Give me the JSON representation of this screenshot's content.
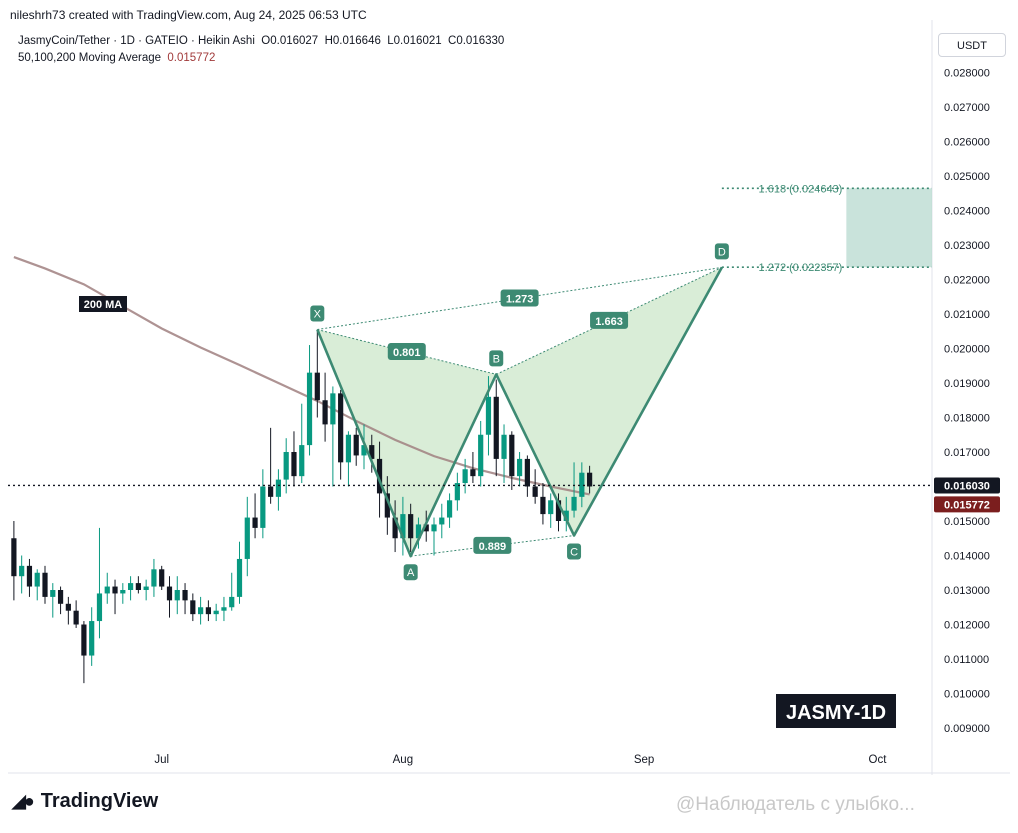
{
  "header": {
    "author_line": "nileshrh73 created with TradingView.com, Aug 24, 2025 06:53 UTC",
    "symbol_line": "JasmyCoin/Tether · 1D · GATEIO · Heikin Ashi",
    "ohlc": {
      "o": "O0.016027",
      "h": "H0.016646",
      "l": "L0.016021",
      "c": "C0.016330"
    },
    "ma_label": "50,100,200 Moving Average",
    "ma_value": "0.015772",
    "currency": "USDT"
  },
  "footer": {
    "brand": "TradingView",
    "watermark": "@Наблюдатель с улыбко..."
  },
  "chart_data": {
    "type": "candlestick",
    "ticker_badge": "JASMY-1D",
    "y_ticks": [
      "0.028000",
      "0.027000",
      "0.026000",
      "0.025000",
      "0.024000",
      "0.023000",
      "0.022000",
      "0.021000",
      "0.020000",
      "0.019000",
      "0.018000",
      "0.017000",
      "0.016000",
      "0.015000",
      "0.014000",
      "0.013000",
      "0.012000",
      "0.011000",
      "0.010000",
      "0.009000"
    ],
    "ylim": [
      0.0087,
      0.0292
    ],
    "x_ticks": [
      {
        "label": "Jul",
        "day": 20
      },
      {
        "label": "Aug",
        "day": 51
      },
      {
        "label": "Sep",
        "day": 82
      },
      {
        "label": "Oct",
        "day": 112
      }
    ],
    "last_price_label": "0.016030",
    "last_price": 0.01603,
    "ma_price_label": "0.015772",
    "ma_price": 0.015772,
    "ma_tag": "200 MA",
    "colors": {
      "up": "#089981",
      "down": "#131722",
      "pattern": "#3d8a73",
      "ma": "#a08080",
      "ma_badge": "#7b1e1e",
      "zone": "#b7d9cf"
    },
    "candles": [
      {
        "d": 1,
        "o": 0.0145,
        "h": 0.015,
        "l": 0.0127,
        "c": 0.0134
      },
      {
        "d": 2,
        "o": 0.0134,
        "h": 0.014,
        "l": 0.0129,
        "c": 0.0137
      },
      {
        "d": 3,
        "o": 0.0137,
        "h": 0.0139,
        "l": 0.0128,
        "c": 0.0131
      },
      {
        "d": 4,
        "o": 0.0131,
        "h": 0.0136,
        "l": 0.0127,
        "c": 0.0135
      },
      {
        "d": 5,
        "o": 0.0135,
        "h": 0.0137,
        "l": 0.0126,
        "c": 0.0128
      },
      {
        "d": 6,
        "o": 0.0128,
        "h": 0.0132,
        "l": 0.0122,
        "c": 0.013
      },
      {
        "d": 7,
        "o": 0.013,
        "h": 0.0131,
        "l": 0.0123,
        "c": 0.0126
      },
      {
        "d": 8,
        "o": 0.0126,
        "h": 0.0128,
        "l": 0.012,
        "c": 0.0124
      },
      {
        "d": 9,
        "o": 0.0124,
        "h": 0.0127,
        "l": 0.0119,
        "c": 0.012
      },
      {
        "d": 10,
        "o": 0.012,
        "h": 0.0121,
        "l": 0.0103,
        "c": 0.0111
      },
      {
        "d": 11,
        "o": 0.0111,
        "h": 0.0125,
        "l": 0.0108,
        "c": 0.0121
      },
      {
        "d": 12,
        "o": 0.0121,
        "h": 0.0148,
        "l": 0.0116,
        "c": 0.0129
      },
      {
        "d": 13,
        "o": 0.0129,
        "h": 0.0135,
        "l": 0.0126,
        "c": 0.0131
      },
      {
        "d": 14,
        "o": 0.0131,
        "h": 0.0133,
        "l": 0.0123,
        "c": 0.0129
      },
      {
        "d": 15,
        "o": 0.0129,
        "h": 0.0132,
        "l": 0.0126,
        "c": 0.013
      },
      {
        "d": 16,
        "o": 0.013,
        "h": 0.0134,
        "l": 0.0127,
        "c": 0.0132
      },
      {
        "d": 17,
        "o": 0.0132,
        "h": 0.0134,
        "l": 0.0129,
        "c": 0.013
      },
      {
        "d": 18,
        "o": 0.013,
        "h": 0.0133,
        "l": 0.0127,
        "c": 0.0131
      },
      {
        "d": 19,
        "o": 0.0131,
        "h": 0.0139,
        "l": 0.0128,
        "c": 0.0136
      },
      {
        "d": 20,
        "o": 0.0136,
        "h": 0.0137,
        "l": 0.013,
        "c": 0.0131
      },
      {
        "d": 21,
        "o": 0.0131,
        "h": 0.0134,
        "l": 0.0122,
        "c": 0.0127
      },
      {
        "d": 22,
        "o": 0.0127,
        "h": 0.0134,
        "l": 0.0123,
        "c": 0.013
      },
      {
        "d": 23,
        "o": 0.013,
        "h": 0.0132,
        "l": 0.0123,
        "c": 0.0127
      },
      {
        "d": 24,
        "o": 0.0127,
        "h": 0.0129,
        "l": 0.0121,
        "c": 0.0123
      },
      {
        "d": 25,
        "o": 0.0123,
        "h": 0.0128,
        "l": 0.012,
        "c": 0.0125
      },
      {
        "d": 26,
        "o": 0.0125,
        "h": 0.0127,
        "l": 0.0121,
        "c": 0.0123
      },
      {
        "d": 27,
        "o": 0.0123,
        "h": 0.0126,
        "l": 0.0121,
        "c": 0.0124
      },
      {
        "d": 28,
        "o": 0.0124,
        "h": 0.0128,
        "l": 0.0121,
        "c": 0.0125
      },
      {
        "d": 29,
        "o": 0.0125,
        "h": 0.0135,
        "l": 0.0124,
        "c": 0.0128
      },
      {
        "d": 30,
        "o": 0.0128,
        "h": 0.0144,
        "l": 0.0126,
        "c": 0.0139
      },
      {
        "d": 31,
        "o": 0.0139,
        "h": 0.0157,
        "l": 0.0134,
        "c": 0.0151
      },
      {
        "d": 32,
        "o": 0.0151,
        "h": 0.0158,
        "l": 0.0145,
        "c": 0.0148
      },
      {
        "d": 33,
        "o": 0.0148,
        "h": 0.0165,
        "l": 0.0145,
        "c": 0.016
      },
      {
        "d": 34,
        "o": 0.016,
        "h": 0.0177,
        "l": 0.0155,
        "c": 0.0157
      },
      {
        "d": 35,
        "o": 0.0157,
        "h": 0.0165,
        "l": 0.0153,
        "c": 0.0162
      },
      {
        "d": 36,
        "o": 0.0162,
        "h": 0.0174,
        "l": 0.0158,
        "c": 0.017
      },
      {
        "d": 37,
        "o": 0.017,
        "h": 0.0176,
        "l": 0.016,
        "c": 0.0163
      },
      {
        "d": 38,
        "o": 0.0163,
        "h": 0.0184,
        "l": 0.0161,
        "c": 0.0172
      },
      {
        "d": 39,
        "o": 0.0172,
        "h": 0.0201,
        "l": 0.0169,
        "c": 0.0193
      },
      {
        "d": 40,
        "o": 0.0193,
        "h": 0.0205,
        "l": 0.018,
        "c": 0.0185
      },
      {
        "d": 41,
        "o": 0.0185,
        "h": 0.0193,
        "l": 0.0173,
        "c": 0.0178
      },
      {
        "d": 42,
        "o": 0.0178,
        "h": 0.0189,
        "l": 0.016,
        "c": 0.0187
      },
      {
        "d": 43,
        "o": 0.0187,
        "h": 0.0188,
        "l": 0.0162,
        "c": 0.0167
      },
      {
        "d": 44,
        "o": 0.0167,
        "h": 0.0176,
        "l": 0.016,
        "c": 0.0175
      },
      {
        "d": 45,
        "o": 0.0175,
        "h": 0.0177,
        "l": 0.0166,
        "c": 0.0169
      },
      {
        "d": 46,
        "o": 0.0169,
        "h": 0.0178,
        "l": 0.0165,
        "c": 0.0172
      },
      {
        "d": 47,
        "o": 0.0172,
        "h": 0.0175,
        "l": 0.0164,
        "c": 0.0168
      },
      {
        "d": 48,
        "o": 0.0168,
        "h": 0.0173,
        "l": 0.0151,
        "c": 0.0158
      },
      {
        "d": 49,
        "o": 0.0158,
        "h": 0.0163,
        "l": 0.0146,
        "c": 0.0151
      },
      {
        "d": 50,
        "o": 0.0151,
        "h": 0.0156,
        "l": 0.0141,
        "c": 0.0145
      },
      {
        "d": 51,
        "o": 0.0145,
        "h": 0.0157,
        "l": 0.014,
        "c": 0.0152
      },
      {
        "d": 52,
        "o": 0.0152,
        "h": 0.0155,
        "l": 0.0141,
        "c": 0.0145
      },
      {
        "d": 53,
        "o": 0.0145,
        "h": 0.0151,
        "l": 0.0142,
        "c": 0.0149
      },
      {
        "d": 54,
        "o": 0.0149,
        "h": 0.0153,
        "l": 0.0144,
        "c": 0.0147
      },
      {
        "d": 55,
        "o": 0.0147,
        "h": 0.0151,
        "l": 0.014,
        "c": 0.0149
      },
      {
        "d": 56,
        "o": 0.0149,
        "h": 0.0155,
        "l": 0.0145,
        "c": 0.0151
      },
      {
        "d": 57,
        "o": 0.0151,
        "h": 0.0158,
        "l": 0.0148,
        "c": 0.0156
      },
      {
        "d": 58,
        "o": 0.0156,
        "h": 0.0164,
        "l": 0.0153,
        "c": 0.0161
      },
      {
        "d": 59,
        "o": 0.0161,
        "h": 0.0168,
        "l": 0.0158,
        "c": 0.0165
      },
      {
        "d": 60,
        "o": 0.0165,
        "h": 0.017,
        "l": 0.0161,
        "c": 0.0163
      },
      {
        "d": 61,
        "o": 0.0163,
        "h": 0.0179,
        "l": 0.016,
        "c": 0.0175
      },
      {
        "d": 62,
        "o": 0.0175,
        "h": 0.0192,
        "l": 0.0169,
        "c": 0.0186
      },
      {
        "d": 63,
        "o": 0.0186,
        "h": 0.0191,
        "l": 0.0163,
        "c": 0.0168
      },
      {
        "d": 64,
        "o": 0.0168,
        "h": 0.0178,
        "l": 0.0161,
        "c": 0.0175
      },
      {
        "d": 65,
        "o": 0.0175,
        "h": 0.0176,
        "l": 0.0159,
        "c": 0.0163
      },
      {
        "d": 66,
        "o": 0.0163,
        "h": 0.017,
        "l": 0.016,
        "c": 0.0168
      },
      {
        "d": 67,
        "o": 0.0168,
        "h": 0.0169,
        "l": 0.0157,
        "c": 0.016
      },
      {
        "d": 68,
        "o": 0.016,
        "h": 0.0165,
        "l": 0.0155,
        "c": 0.0157
      },
      {
        "d": 69,
        "o": 0.0157,
        "h": 0.0161,
        "l": 0.0149,
        "c": 0.0152
      },
      {
        "d": 70,
        "o": 0.0152,
        "h": 0.0158,
        "l": 0.0148,
        "c": 0.0156
      },
      {
        "d": 71,
        "o": 0.0156,
        "h": 0.0158,
        "l": 0.0147,
        "c": 0.015
      },
      {
        "d": 72,
        "o": 0.015,
        "h": 0.0157,
        "l": 0.0147,
        "c": 0.0153
      },
      {
        "d": 73,
        "o": 0.0153,
        "h": 0.0167,
        "l": 0.0151,
        "c": 0.0157
      },
      {
        "d": 74,
        "o": 0.0157,
        "h": 0.0167,
        "l": 0.0154,
        "c": 0.0164
      },
      {
        "d": 75,
        "o": 0.0164,
        "h": 0.0166,
        "l": 0.0158,
        "c": 0.016
      }
    ],
    "ma200": [
      {
        "d": 1,
        "v": 0.02265
      },
      {
        "d": 5,
        "v": 0.02232
      },
      {
        "d": 10,
        "v": 0.02186
      },
      {
        "d": 15,
        "v": 0.02122
      },
      {
        "d": 20,
        "v": 0.02058
      },
      {
        "d": 25,
        "v": 0.02003
      },
      {
        "d": 30,
        "v": 0.01952
      },
      {
        "d": 35,
        "v": 0.019
      },
      {
        "d": 40,
        "v": 0.01848
      },
      {
        "d": 45,
        "v": 0.0179
      },
      {
        "d": 50,
        "v": 0.01735
      },
      {
        "d": 55,
        "v": 0.01688
      },
      {
        "d": 60,
        "v": 0.01653
      },
      {
        "d": 65,
        "v": 0.01625
      },
      {
        "d": 70,
        "v": 0.016
      },
      {
        "d": 75,
        "v": 0.01577
      }
    ],
    "harmonic": {
      "points": [
        {
          "label": "X",
          "d": 40,
          "v": 0.02055
        },
        {
          "label": "A",
          "d": 52,
          "v": 0.01398
        },
        {
          "label": "B",
          "d": 63,
          "v": 0.01925
        },
        {
          "label": "C",
          "d": 73,
          "v": 0.01458
        },
        {
          "label": "D",
          "d": 92,
          "v": 0.02235
        }
      ],
      "ratios": [
        {
          "text": "0.801",
          "between": [
            "X",
            "B"
          ]
        },
        {
          "text": "0.889",
          "between": [
            "A",
            "C"
          ]
        },
        {
          "text": "1.663",
          "between": [
            "B",
            "D"
          ]
        },
        {
          "text": "1.273",
          "between": [
            "X",
            "D"
          ]
        }
      ]
    },
    "target_zone": {
      "day_start": 108,
      "day_end": 121,
      "upper": 0.024643,
      "lower": 0.022357,
      "upper_label": "1.618 (0.024643)",
      "lower_label": "1.272 (0.022357)"
    }
  }
}
